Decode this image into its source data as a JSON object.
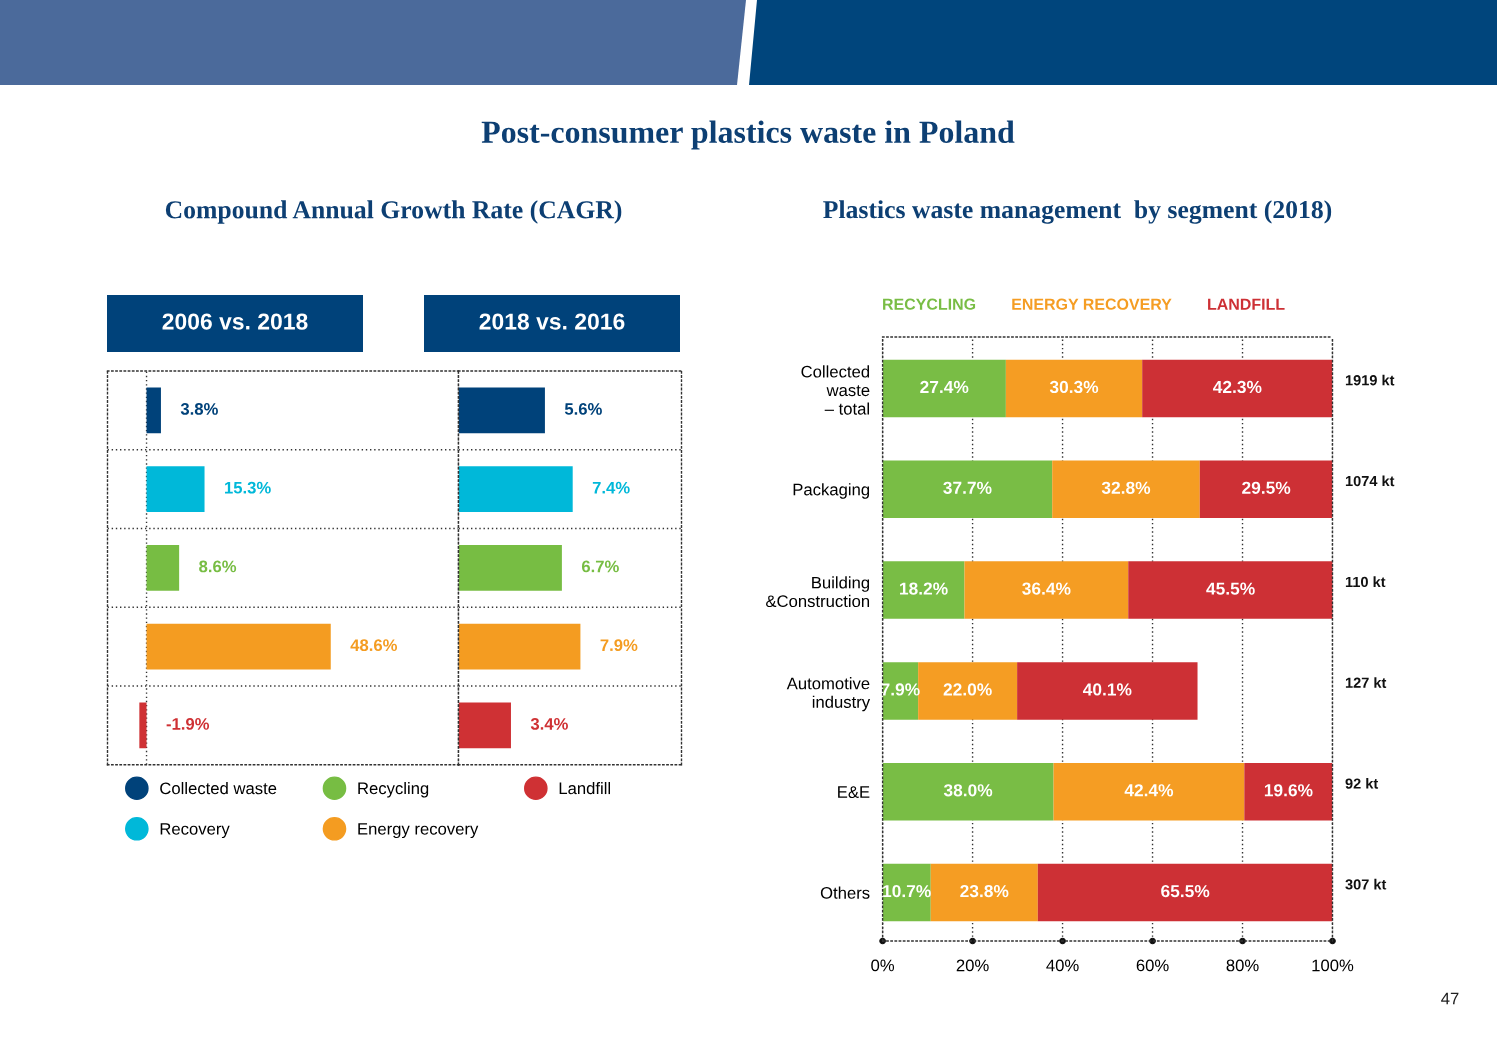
{
  "chart_data": [
    {
      "type": "other",
      "title": "Post-consumer plastics waste in Poland",
      "annotations": [
        "47"
      ]
    },
    {
      "type": "bar",
      "title": "Compound Annual Growth Rate (CAGR)",
      "subtitle": "2006 vs. 2018",
      "orientation": "horizontal",
      "stacked": true,
      "categories": [
        null,
        null,
        null,
        null,
        null
      ],
      "series": [
        {
          "name": "Collected waste",
          "color": "#00427a",
          "values": [
            3.8,
            null,
            null,
            null,
            null
          ],
          "value_labels": [
            "3.8%",
            null,
            null,
            null,
            null
          ]
        },
        {
          "name": "Recovery",
          "color": "#00b8d9",
          "values": [
            null,
            15.3,
            null,
            null,
            null
          ],
          "value_labels": [
            null,
            "15.3%",
            null,
            null,
            null
          ]
        },
        {
          "name": "Recycling",
          "color": "#77bd43",
          "values": [
            null,
            null,
            8.6,
            null,
            null
          ],
          "value_labels": [
            null,
            null,
            "8.6%",
            null,
            null
          ]
        },
        {
          "name": "Energy recovery",
          "color": "#f49c21",
          "values": [
            null,
            null,
            null,
            48.6,
            null
          ],
          "value_labels": [
            null,
            null,
            null,
            "48.6%",
            null
          ]
        },
        {
          "name": "Landfill",
          "color": "#cf3134",
          "values": [
            null,
            null,
            null,
            null,
            -1.9
          ],
          "value_labels": [
            null,
            null,
            null,
            null,
            "-1.9%"
          ]
        }
      ],
      "xlim": [
        -10.3,
        82.3
      ],
      "grid": "y",
      "legend": "bottom",
      "ref_lines": [
        {
          "axis": "x",
          "value": 0,
          "line_style": "dotted",
          "color": "#333333"
        }
      ]
    },
    {
      "type": "bar",
      "subtitle": "2018 vs. 2016",
      "orientation": "horizontal",
      "categories": [
        null,
        null,
        null,
        null,
        null
      ],
      "values": [
        5.6,
        7.4,
        6.7,
        7.9,
        3.4
      ],
      "colors": [
        "#00427a",
        "#00b8d9",
        "#77bd43",
        "#f49c21",
        "#cf3134"
      ],
      "value_labels": [
        "5.6%",
        "7.4%",
        "6.7%",
        "7.9%",
        "3.4%"
      ],
      "xlim": [
        0,
        14.45
      ],
      "grid": "y"
    },
    {
      "type": "bar",
      "title": "Plastics waste management  by segment (2018)",
      "orientation": "horizontal",
      "stacked": true,
      "categories": [
        "Collected\nwaste\n– total",
        "Packaging",
        "Building\n&Construction",
        "Automotive\nindustry",
        "E&E",
        "Others"
      ],
      "series": [
        {
          "name": "RECYCLING",
          "color": "#79bd45",
          "values": [
            27.4,
            37.7,
            18.2,
            7.9,
            38.0,
            10.7
          ],
          "value_labels": [
            "27.4%",
            "37.7%",
            "18.2%",
            "7.9%",
            "38.0%",
            "10.7%"
          ]
        },
        {
          "name": "ENERGY RECOVERY",
          "color": "#f59d23",
          "values": [
            30.3,
            32.8,
            36.4,
            22.0,
            42.4,
            23.8
          ],
          "value_labels": [
            "30.3%",
            "32.8%",
            "36.4%",
            "22.0%",
            "42.4%",
            "23.8%"
          ]
        },
        {
          "name": "LANDFILL",
          "color": "#cd3035",
          "values": [
            42.3,
            29.5,
            45.5,
            40.1,
            19.6,
            65.5
          ],
          "value_labels": [
            "42.3%",
            "29.5%",
            "45.5%",
            "40.1%",
            "19.6%",
            "65.5%"
          ]
        }
      ],
      "annotations": [
        "1919 kt",
        "1074 kt",
        "110 kt",
        "127 kt",
        "92 kt",
        "307 kt"
      ],
      "xlim": [
        0,
        100
      ],
      "xticks": [
        {
          "value": 0,
          "label": "0%"
        },
        {
          "value": 20,
          "label": "20%"
        },
        {
          "value": 40,
          "label": "40%"
        },
        {
          "value": 60,
          "label": "60%"
        },
        {
          "value": 80,
          "label": "80%"
        },
        {
          "value": 100,
          "label": "100%"
        }
      ],
      "grid": "x",
      "legend": "top"
    }
  ]
}
